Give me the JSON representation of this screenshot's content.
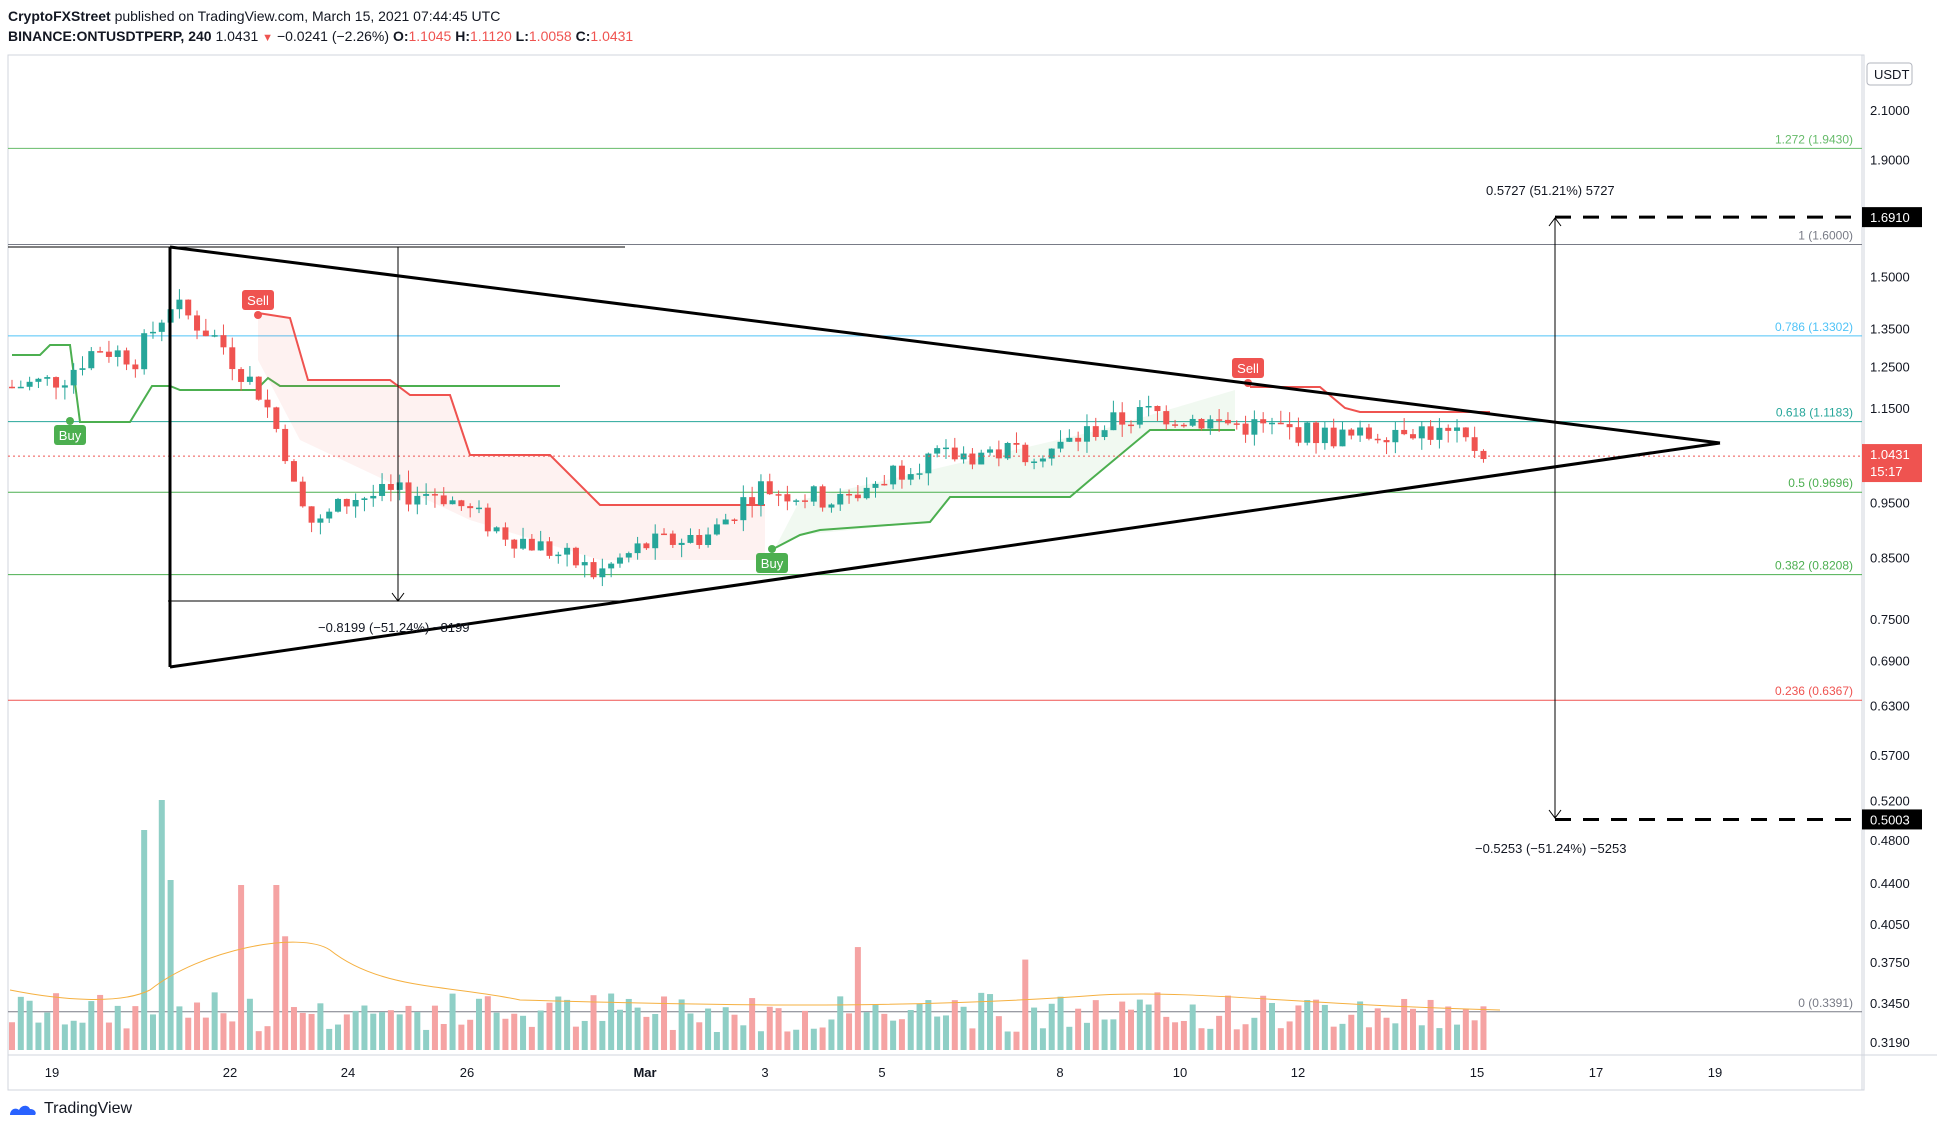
{
  "header": {
    "line1_user": "CryptoFXStreet",
    "line1_rest": " published on TradingView.com, March 15, 2021 07:44:45 UTC",
    "symbol": "BINANCE:ONTUSDTPERP, 240",
    "last": "1.0431",
    "change": "−0.0241 (−2.26%)",
    "o_label": "O:",
    "o": "1.1045",
    "h_label": "H:",
    "h": "1.1120",
    "l_label": "L:",
    "l": "1.0058",
    "c_label": "C:",
    "c": "1.0431"
  },
  "footer": {
    "brand": "TradingView"
  },
  "chart_data": {
    "type": "candlestick",
    "currency": "USDT",
    "price_axis_labels": [
      "2.1000",
      "1.9000",
      "1.5000",
      "1.3500",
      "1.2500",
      "1.1500",
      "0.9500",
      "0.8500",
      "0.7500",
      "0.6900",
      "0.6300",
      "0.5700",
      "0.5200",
      "0.4800",
      "0.4400",
      "0.4050",
      "0.3750",
      "0.3450",
      "0.3190"
    ],
    "time_axis_labels": [
      "19",
      "22",
      "24",
      "26",
      "Mar",
      "3",
      "5",
      "8",
      "10",
      "12",
      "15",
      "17",
      "19"
    ],
    "current_price": "1.0431",
    "countdown": "15:17",
    "fibonacci": [
      {
        "label": "1.272 (1.9430)",
        "value": 1.943,
        "color": "#66bb6a"
      },
      {
        "label": "1 (1.6000)",
        "value": 1.6,
        "color": "#787b86"
      },
      {
        "label": "0.786 (1.3302)",
        "value": 1.3302,
        "color": "#4fc3f7"
      },
      {
        "label": "0.618 (1.1183)",
        "value": 1.1183,
        "color": "#26a69a"
      },
      {
        "label": "0.5 (0.9696)",
        "value": 0.9696,
        "color": "#4caf50"
      },
      {
        "label": "0.382 (0.8208)",
        "value": 0.8208,
        "color": "#4caf50"
      },
      {
        "label": "0.236 (0.6367)",
        "value": 0.6367,
        "color": "#ef5350"
      },
      {
        "label": "0 (0.3391)",
        "value": 0.3391,
        "color": "#787b86"
      }
    ],
    "targets": [
      {
        "label": "1.6910",
        "value": 1.691
      },
      {
        "label": "0.5003",
        "value": 0.5003
      }
    ],
    "annotations": [
      "0.5727 (51.21%) 5727",
      "−0.5253 (−51.24%) −5253",
      "−0.8199 (−51.24%) −8199"
    ],
    "signals": [
      {
        "label": "Buy",
        "type": "buy"
      },
      {
        "label": "Sell",
        "type": "sell"
      },
      {
        "label": "Buy",
        "type": "buy"
      },
      {
        "label": "Sell",
        "type": "sell"
      }
    ],
    "colors": {
      "up": "#26a69a",
      "down": "#ef5350",
      "vol_up": "#8fcfc6",
      "vol_down": "#f5a3a3",
      "supertrend_up": "#4caf50",
      "supertrend_down": "#ef5350"
    }
  }
}
